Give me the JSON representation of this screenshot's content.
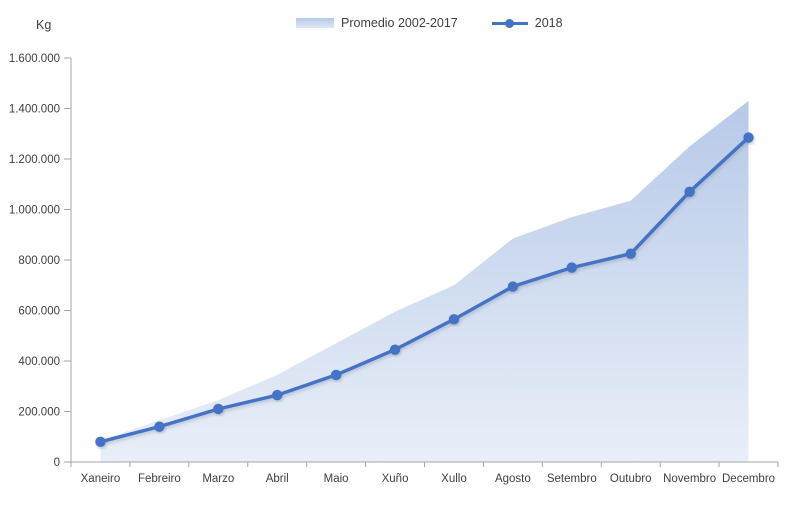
{
  "chart_data": {
    "type": "area+line",
    "title": "",
    "ylabel": "Kg",
    "xlabel": "",
    "gridlines": false,
    "legend_position": "top-center",
    "categories": [
      "Xaneiro",
      "Febreiro",
      "Marzo",
      "Abril",
      "Maio",
      "Xuño",
      "Xullo",
      "Agosto",
      "Setembro",
      "Outubro",
      "Novembro",
      "Decembro"
    ],
    "series": [
      {
        "name": "Promedio 2002-2017",
        "type": "area",
        "color_top": "#b7c9e8",
        "color_bottom": "#e9eff8",
        "values": [
          85000,
          165000,
          245000,
          345000,
          470000,
          595000,
          700000,
          885000,
          970000,
          1035000,
          1250000,
          1430000
        ]
      },
      {
        "name": "2018",
        "type": "line",
        "color": "#4472c4",
        "marker": "circle",
        "values": [
          80000,
          140000,
          210000,
          265000,
          345000,
          445000,
          565000,
          695000,
          770000,
          825000,
          1070000,
          1285000
        ]
      }
    ],
    "ylim": [
      0,
      1600000
    ],
    "ytick_step": 200000,
    "ytick_labels": [
      "0",
      "200.000",
      "400.000",
      "600.000",
      "800.000",
      "1.000.000",
      "1.200.000",
      "1.400.000",
      "1.600.000"
    ],
    "axis_color": "#a6a6a6",
    "text_color": "#3f3f3f"
  }
}
